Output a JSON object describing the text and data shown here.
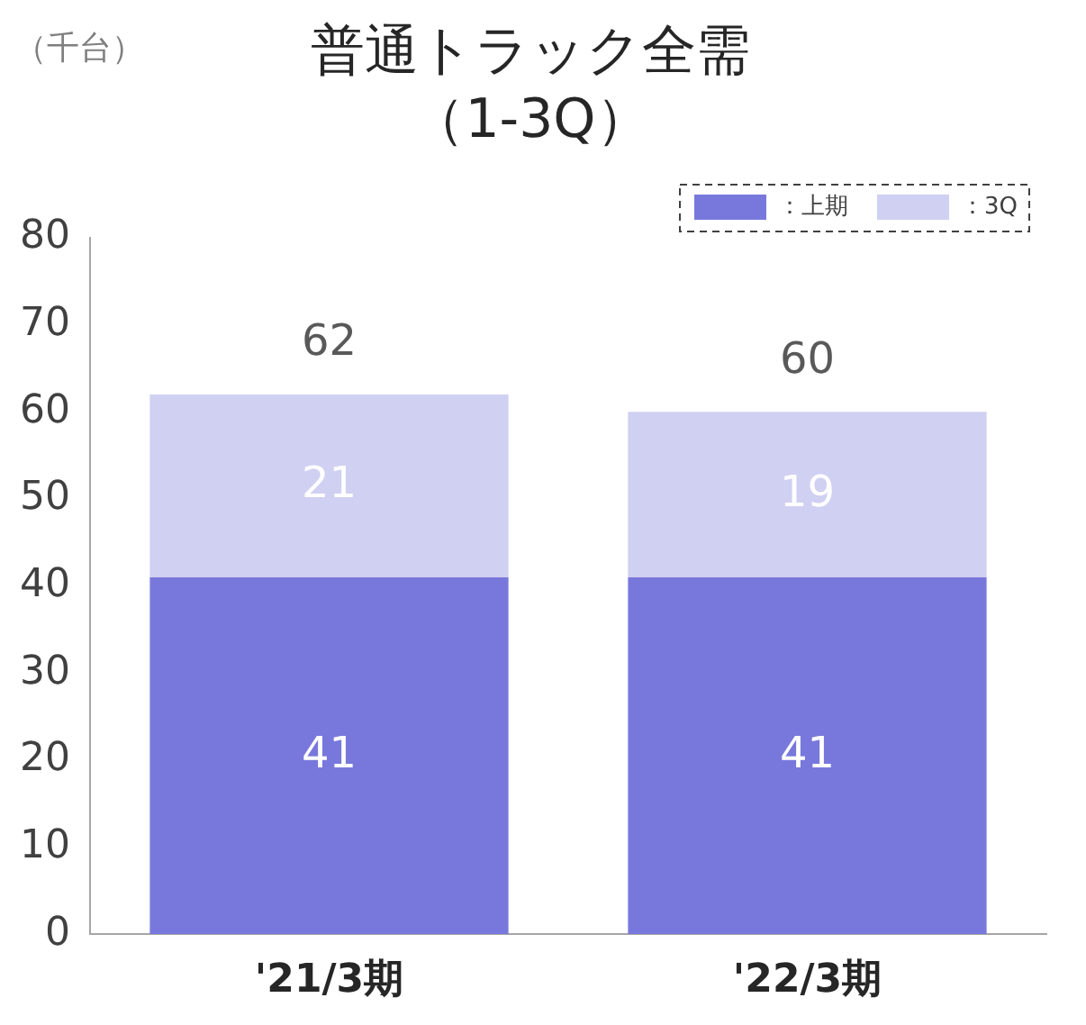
{
  "chart_data": {
    "type": "bar",
    "title": "普通トラック全需",
    "subtitle": "（1-3Q）",
    "ylabel": "（千台）",
    "categories": [
      "'21/3期",
      "'22/3期"
    ],
    "series": [
      {
        "name": "：上期",
        "color": "#7878dc",
        "values": [
          41,
          41
        ]
      },
      {
        "name": "：3Q",
        "color": "#d0d0f2",
        "values": [
          21,
          19
        ]
      }
    ],
    "stacked": true,
    "data_labels": true,
    "totals": [
      "62",
      "60"
    ],
    "ylim": [
      0,
      80
    ],
    "yticks": [
      0,
      10,
      20,
      30,
      40,
      50,
      60,
      70,
      80
    ],
    "grid": false,
    "legend": "top right"
  }
}
